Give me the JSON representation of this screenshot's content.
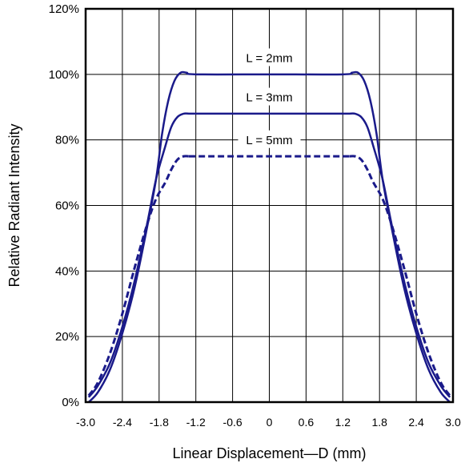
{
  "chart_data": {
    "type": "line",
    "title": "",
    "xlabel": "Linear Displacement—D (mm)",
    "ylabel": "Relative Radiant Intensity",
    "xlim": [
      -3.0,
      3.0
    ],
    "ylim": [
      0,
      120
    ],
    "x_ticks": [
      "-3.0",
      "-2.4",
      "-1.8",
      "-1.2",
      "-0.6",
      "0",
      "0.6",
      "1.2",
      "1.8",
      "2.4",
      "3.0"
    ],
    "y_ticks": [
      "0%",
      "20%",
      "40%",
      "60%",
      "80%",
      "100%",
      "120%"
    ],
    "grid": true,
    "series": [
      {
        "name": "L = 2mm",
        "color": "#1a1a8a",
        "style": "solid",
        "x": [
          -2.95,
          -2.8,
          -2.6,
          -2.4,
          -2.2,
          -2.0,
          -1.85,
          -1.75,
          -1.65,
          -1.55,
          -1.45,
          -1.35,
          -1.2,
          0,
          1.2,
          1.35,
          1.45,
          1.55,
          1.65,
          1.75,
          1.85,
          2.0,
          2.2,
          2.4,
          2.6,
          2.8,
          2.95
        ],
        "y": [
          0,
          3,
          10,
          21,
          35,
          53,
          68,
          82,
          92,
          98,
          100.5,
          100.5,
          100,
          100,
          100,
          100.5,
          100.5,
          98,
          92,
          82,
          68,
          53,
          35,
          21,
          10,
          3,
          0
        ]
      },
      {
        "name": "L = 3mm",
        "color": "#1a1a8a",
        "style": "solid",
        "x": [
          -2.95,
          -2.8,
          -2.6,
          -2.4,
          -2.2,
          -2.0,
          -1.85,
          -1.7,
          -1.6,
          -1.5,
          -1.4,
          -1.3,
          -1.2,
          0,
          1.2,
          1.3,
          1.4,
          1.5,
          1.6,
          1.7,
          1.85,
          2.0,
          2.2,
          2.4,
          2.6,
          2.8,
          2.95
        ],
        "y": [
          1.5,
          5,
          12,
          23,
          37,
          54,
          68,
          78,
          84,
          87,
          88,
          88,
          88,
          88,
          88,
          88,
          88,
          87,
          84,
          78,
          68,
          54,
          37,
          23,
          12,
          5,
          1.5
        ]
      },
      {
        "name": "L = 5mm",
        "color": "#1a1a8a",
        "style": "dashed",
        "x": [
          -2.95,
          -2.8,
          -2.6,
          -2.4,
          -2.2,
          -2.0,
          -1.85,
          -1.7,
          -1.6,
          -1.5,
          -1.4,
          -1.3,
          -1.2,
          0,
          1.2,
          1.3,
          1.4,
          1.5,
          1.6,
          1.7,
          1.85,
          2.0,
          2.2,
          2.4,
          2.6,
          2.8,
          2.95
        ],
        "y": [
          2,
          6,
          15,
          27,
          41,
          54,
          62,
          67,
          71,
          74,
          75,
          75,
          75,
          75,
          75,
          75,
          75,
          74,
          71,
          67,
          62,
          54,
          41,
          27,
          15,
          6,
          2
        ]
      }
    ],
    "annotations": [
      {
        "text": "L = 2mm",
        "x": 0,
        "y": 104
      },
      {
        "text": "L = 3mm",
        "x": 0,
        "y": 92
      },
      {
        "text": "L = 5mm",
        "x": 0,
        "y": 79
      }
    ]
  }
}
